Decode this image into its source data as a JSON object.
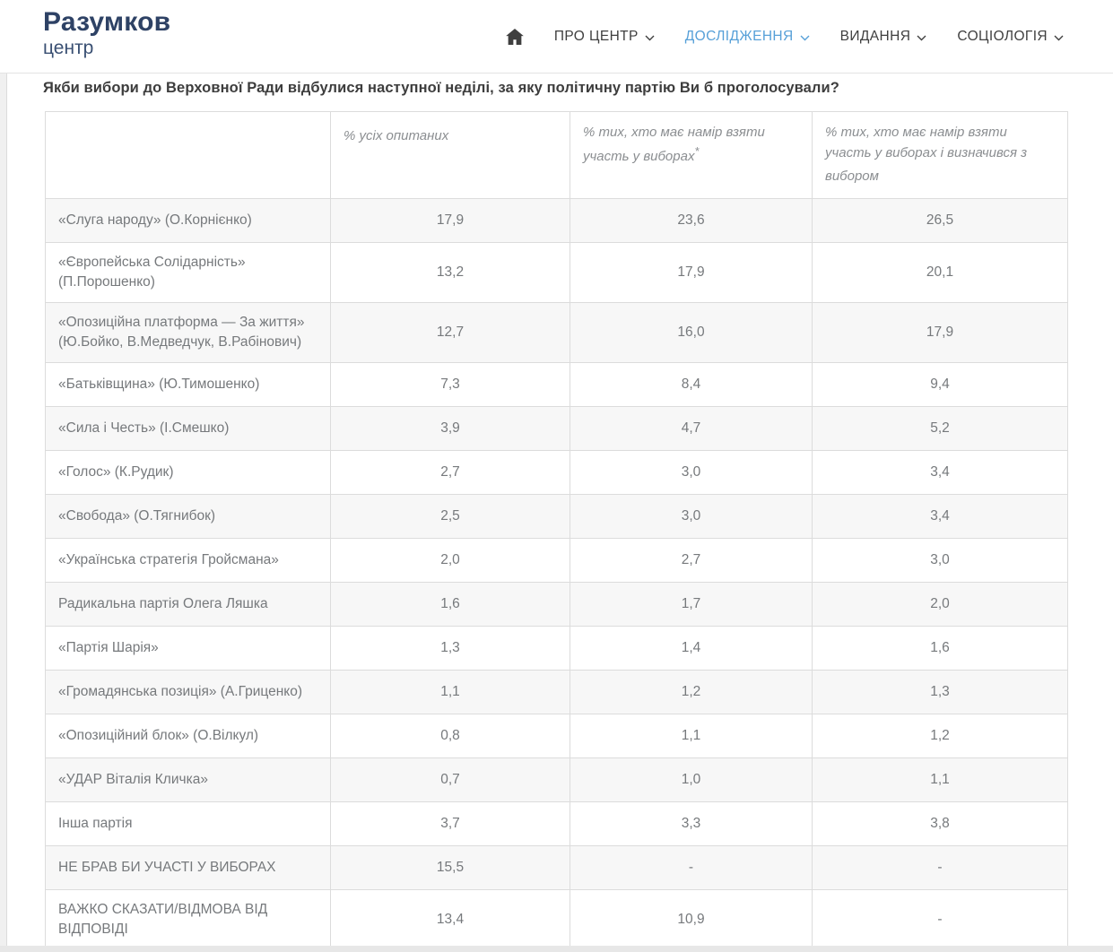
{
  "header": {
    "logo_title": "Разумков",
    "logo_subtitle": "центр",
    "nav_items": [
      {
        "label": "ПРО ЦЕНТР",
        "active": false
      },
      {
        "label": "ДОСЛІДЖЕННЯ",
        "active": true
      },
      {
        "label": "ВИДАННЯ",
        "active": false
      },
      {
        "label": "СОЦІОЛОГІЯ",
        "active": false
      }
    ]
  },
  "page": {
    "question": "Якби вибори до Верховної Ради відбулися наступної неділі, за яку політичну партію Ви б проголосували?"
  },
  "table": {
    "columns": [
      {
        "text": "",
        "sup": ""
      },
      {
        "text": "% усіх опитаних",
        "sup": ""
      },
      {
        "text": "% тих, хто має намір взяти участь у виборах",
        "sup": "*"
      },
      {
        "text": "% тих, хто має намір взяти участь у виборах і визначився з вибором",
        "sup": ""
      }
    ],
    "rows": [
      {
        "label": "«Слуга народу» (О.Корнієнко)",
        "values": [
          "17,9",
          "23,6",
          "26,5"
        ]
      },
      {
        "label": "«Європейська Солідарність» (П.Порошенко)",
        "values": [
          "13,2",
          "17,9",
          "20,1"
        ]
      },
      {
        "label": "«Опозиційна платформа — За життя» (Ю.Бойко, В.Медведчук, В.Рабінович)",
        "values": [
          "12,7",
          "16,0",
          "17,9"
        ]
      },
      {
        "label": "«Батьківщина» (Ю.Тимошенко)",
        "values": [
          "7,3",
          "8,4",
          "9,4"
        ]
      },
      {
        "label": "«Сила і Честь» (І.Смешко)",
        "values": [
          "3,9",
          "4,7",
          "5,2"
        ]
      },
      {
        "label": "«Голос» (К.Рудик)",
        "values": [
          "2,7",
          "3,0",
          "3,4"
        ]
      },
      {
        "label": "«Свобода» (О.Тягнибок)",
        "values": [
          "2,5",
          "3,0",
          "3,4"
        ]
      },
      {
        "label": "«Українська стратегія Гройсмана»",
        "values": [
          "2,0",
          "2,7",
          "3,0"
        ]
      },
      {
        "label": "Радикальна партія Олега Ляшка",
        "values": [
          "1,6",
          "1,7",
          "2,0"
        ]
      },
      {
        "label": "«Партія Шарія»",
        "values": [
          "1,3",
          "1,4",
          "1,6"
        ]
      },
      {
        "label": "«Громадянська позиція» (А.Гриценко)",
        "values": [
          "1,1",
          "1,2",
          "1,3"
        ]
      },
      {
        "label": "«Опозиційний блок» (О.Вілкул)",
        "values": [
          "0,8",
          "1,1",
          "1,2"
        ]
      },
      {
        "label": "«УДАР Віталія Кличка»",
        "values": [
          "0,7",
          "1,0",
          "1,1"
        ]
      },
      {
        "label": "Інша партія",
        "values": [
          "3,7",
          "3,3",
          "3,8"
        ]
      },
      {
        "label": "НЕ БРАВ БИ УЧАСТІ У ВИБОРАХ",
        "values": [
          "15,5",
          "-",
          "-"
        ]
      },
      {
        "label": "ВАЖКО СКАЗАТИ/ВІДМОВА ВІД ВІДПОВІДІ",
        "values": [
          "13,4",
          "10,9",
          "-"
        ]
      }
    ]
  },
  "colors": {
    "logo_navy": "#2e4265",
    "nav_active_blue": "#57a0d8",
    "nav_text": "#3f3f3f",
    "table_text": "#76797c",
    "table_header_text": "#8b8e91",
    "row_stripe": "#f7f7f7",
    "border": "#dcdcdc"
  }
}
